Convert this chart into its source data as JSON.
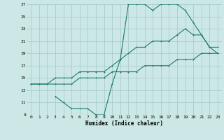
{
  "xlabel": "Humidex (Indice chaleur)",
  "bg_color": "#cce8e6",
  "grid_color": "#aaccca",
  "line_color": "#1a7a6e",
  "xlim": [
    -0.5,
    23.5
  ],
  "ylim": [
    9,
    27
  ],
  "xticks": [
    0,
    1,
    2,
    3,
    4,
    5,
    6,
    7,
    8,
    9,
    10,
    11,
    12,
    13,
    14,
    15,
    16,
    17,
    18,
    19,
    20,
    21,
    22,
    23
  ],
  "yticks": [
    9,
    11,
    13,
    15,
    17,
    19,
    21,
    23,
    25,
    27
  ],
  "line1_x": [
    0,
    1,
    2,
    3,
    4,
    5,
    6,
    7,
    8,
    9,
    10,
    11,
    12,
    13,
    14,
    15,
    16,
    17,
    18,
    19,
    20,
    21,
    22,
    23
  ],
  "line1_y": [
    14,
    14,
    14,
    14,
    14,
    14,
    15,
    15,
    15,
    15,
    16,
    16,
    16,
    16,
    17,
    17,
    17,
    17,
    18,
    18,
    18,
    19,
    19,
    19
  ],
  "line2_x": [
    0,
    1,
    2,
    3,
    4,
    5,
    6,
    7,
    8,
    9,
    10,
    11,
    12,
    13,
    14,
    15,
    16,
    17,
    18,
    19,
    20,
    21,
    22,
    23
  ],
  "line2_y": [
    14,
    14,
    14,
    15,
    15,
    15,
    16,
    16,
    16,
    16,
    17,
    18,
    19,
    20,
    20,
    21,
    21,
    21,
    22,
    23,
    22,
    22,
    20,
    20
  ],
  "line3_x": [
    3,
    4,
    5,
    6,
    7,
    8,
    9,
    10,
    11,
    12,
    13,
    14,
    15,
    16,
    17,
    18,
    19,
    20,
    21,
    22,
    23
  ],
  "line3_y": [
    12,
    11,
    10,
    10,
    10,
    9,
    9,
    14,
    18,
    27,
    27,
    27,
    26,
    27,
    27,
    27,
    26,
    24,
    22,
    20,
    19
  ]
}
